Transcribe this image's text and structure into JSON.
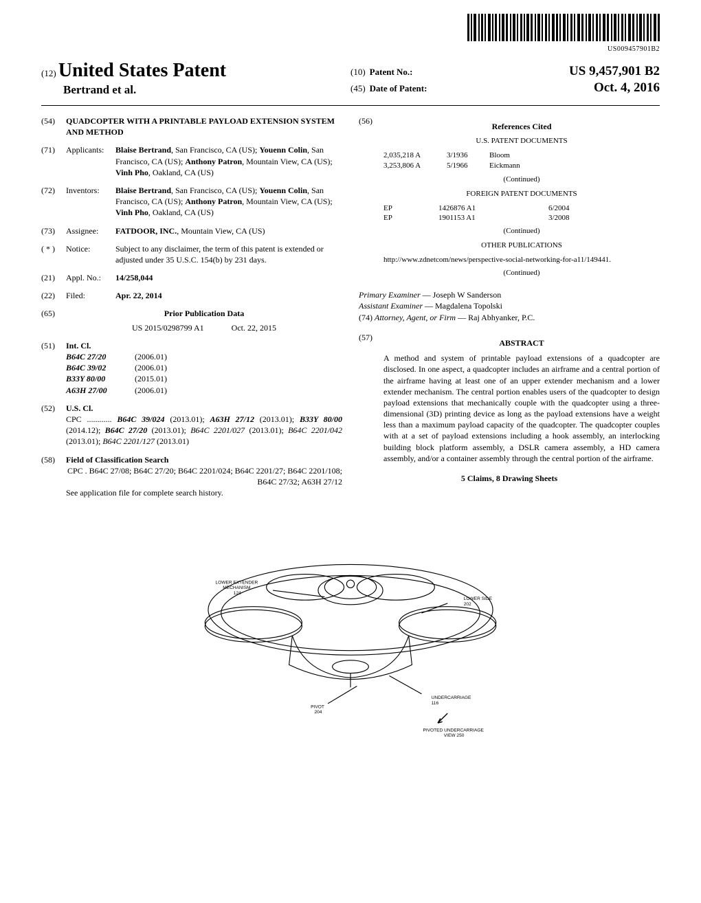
{
  "barcode_text": "US009457901B2",
  "header": {
    "code_12": "(12)",
    "main_title": "United States Patent",
    "authors": "Bertrand et al.",
    "code_10": "(10)",
    "patent_no_label": "Patent No.:",
    "patent_no": "US 9,457,901 B2",
    "code_45": "(45)",
    "date_label": "Date of Patent:",
    "date_value": "Oct. 4, 2016"
  },
  "left": {
    "f54": {
      "code": "(54)",
      "title": "QUADCOPTER WITH A PRINTABLE PAYLOAD EXTENSION SYSTEM AND METHOD"
    },
    "f71": {
      "code": "(71)",
      "label": "Applicants:",
      "text": "Blaise Bertrand, San Francisco, CA (US); Youenn Colin, San Francisco, CA (US); Anthony Patron, Mountain View, CA (US); Vinh Pho, Oakland, CA (US)"
    },
    "f72": {
      "code": "(72)",
      "label": "Inventors:",
      "text": "Blaise Bertrand, San Francisco, CA (US); Youenn Colin, San Francisco, CA (US); Anthony Patron, Mountain View, CA (US); Vinh Pho, Oakland, CA (US)"
    },
    "f73": {
      "code": "(73)",
      "label": "Assignee:",
      "text": "FATDOOR, INC., Mountain View, CA (US)"
    },
    "fnotice": {
      "code": "( * )",
      "label": "Notice:",
      "text": "Subject to any disclaimer, the term of this patent is extended or adjusted under 35 U.S.C. 154(b) by 231 days."
    },
    "f21": {
      "code": "(21)",
      "label": "Appl. No.:",
      "value": "14/258,044"
    },
    "f22": {
      "code": "(22)",
      "label": "Filed:",
      "value": "Apr. 22, 2014"
    },
    "f65": {
      "code": "(65)",
      "heading": "Prior Publication Data",
      "pub_no": "US 2015/0298799 A1",
      "pub_date": "Oct. 22, 2015"
    },
    "f51": {
      "code": "(51)",
      "label": "Int. Cl.",
      "rows": [
        {
          "cls": "B64C 27/20",
          "year": "(2006.01)"
        },
        {
          "cls": "B64C 39/02",
          "year": "(2006.01)"
        },
        {
          "cls": "B33Y 80/00",
          "year": "(2015.01)"
        },
        {
          "cls": "A63H 27/00",
          "year": "(2006.01)"
        }
      ]
    },
    "f52": {
      "code": "(52)",
      "label": "U.S. Cl.",
      "text": "CPC ............ B64C 39/024 (2013.01); A63H 27/12 (2013.01); B33Y 80/00 (2014.12); B64C 27/20 (2013.01); B64C 2201/027 (2013.01); B64C 2201/042 (2013.01); B64C 2201/127 (2013.01)"
    },
    "f58": {
      "code": "(58)",
      "label": "Field of Classification Search",
      "text": "CPC . B64C 27/08; B64C 27/20; B64C 2201/024; B64C 2201/27; B64C 2201/108; B64C 27/32; A63H 27/12",
      "footer": "See application file for complete search history."
    }
  },
  "right": {
    "f56": {
      "code": "(56)",
      "heading": "References Cited",
      "us_heading": "U.S. PATENT DOCUMENTS",
      "us_rows": [
        {
          "no": "2,035,218 A",
          "date": "3/1936",
          "name": "Bloom"
        },
        {
          "no": "3,253,806 A",
          "date": "5/1966",
          "name": "Eickmann"
        }
      ],
      "continued1": "(Continued)",
      "foreign_heading": "FOREIGN PATENT DOCUMENTS",
      "foreign_rows": [
        {
          "cc": "EP",
          "no": "1426876 A1",
          "date": "6/2004"
        },
        {
          "cc": "EP",
          "no": "1901153 A1",
          "date": "3/2008"
        }
      ],
      "continued2": "(Continued)",
      "other_heading": "OTHER PUBLICATIONS",
      "other_text": "http://www.zdnetcom/news/perspective-social-networking-for-a11/149441.",
      "continued3": "(Continued)"
    },
    "examiner": {
      "primary_label": "Primary Examiner",
      "primary": " — Joseph W Sanderson",
      "assistant_label": "Assistant Examiner",
      "assistant": " — Magdalena Topolski",
      "attorney_code": "(74)",
      "attorney_label": "Attorney, Agent, or Firm",
      "attorney": " — Raj Abhyanker, P.C."
    },
    "f57": {
      "code": "(57)",
      "heading": "ABSTRACT",
      "text": "A method and system of printable payload extensions of a quadcopter are disclosed. In one aspect, a quadcopter includes an airframe and a central portion of the airframe having at least one of an upper extender mechanism and a lower extender mechanism. The central portion enables users of the quadcopter to design payload extensions that mechanically couple with the quadcopter using a three-dimensional (3D) printing device as long as the payload extensions have a weight less than a maximum payload capacity of the quadcopter. The quadcopter couples with at a set of payload extensions including a hook assembly, an interlocking building block platform assembly, a DSLR camera assembly, a HD camera assembly, and/or a container assembly through the central portion of the airframe."
    },
    "claims": "5 Claims, 8 Drawing Sheets"
  },
  "figure": {
    "label_lower_extender": "LOWER EXTENDER MECHANISM 124",
    "label_lower_side": "LOWER SIDE 202",
    "label_pivot": "PIVOT 204",
    "label_undercarriage": "UNDERCARRIAGE 116",
    "caption": "PIVOTED UNDERCARRIAGE VIEW 250"
  }
}
